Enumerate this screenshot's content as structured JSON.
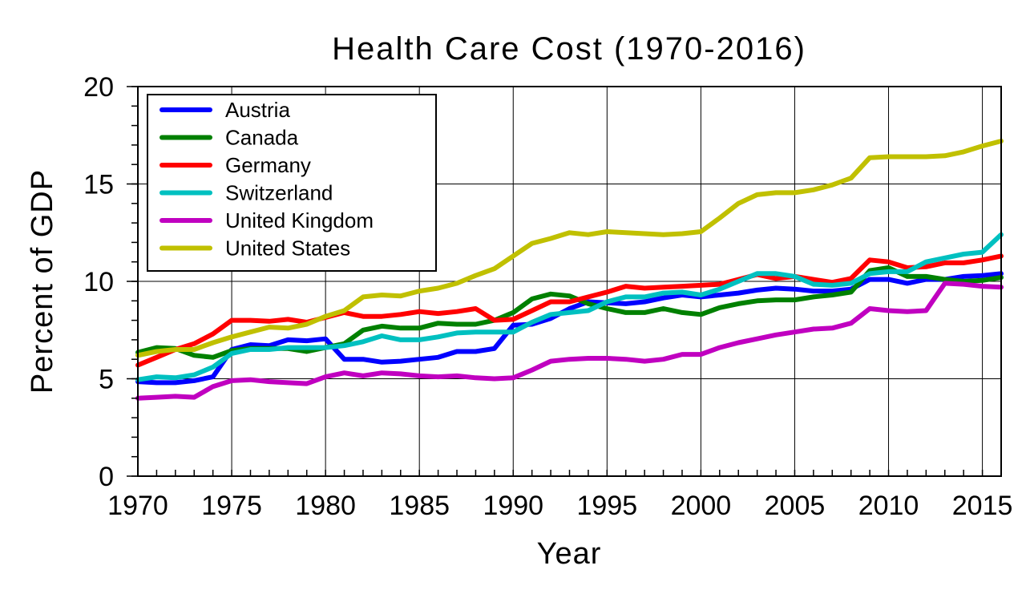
{
  "chart_data": {
    "type": "line",
    "title": "Health Care Cost (1970-2016)",
    "xlabel": "Year",
    "ylabel": "Percent of GDP",
    "xlim": [
      1970,
      2016
    ],
    "ylim": [
      0,
      20
    ],
    "x_ticks": [
      "1970",
      "1975",
      "1980",
      "1985",
      "1990",
      "1995",
      "2000",
      "2005",
      "2010",
      "2015"
    ],
    "y_ticks": [
      "0",
      "5",
      "10",
      "15",
      "20"
    ],
    "grid": true,
    "legend_position": "top-left",
    "x": [
      1970,
      1971,
      1972,
      1973,
      1974,
      1975,
      1976,
      1977,
      1978,
      1979,
      1980,
      1981,
      1982,
      1983,
      1984,
      1985,
      1986,
      1987,
      1988,
      1989,
      1990,
      1991,
      1992,
      1993,
      1994,
      1995,
      1996,
      1997,
      1998,
      1999,
      2000,
      2001,
      2002,
      2003,
      2004,
      2005,
      2006,
      2007,
      2008,
      2009,
      2010,
      2011,
      2012,
      2013,
      2014,
      2015,
      2016
    ],
    "series": [
      {
        "name": "Austria",
        "color": "#0000ff",
        "values": [
          4.85,
          4.8,
          4.8,
          4.9,
          5.1,
          6.5,
          6.75,
          6.7,
          7.0,
          6.95,
          7.05,
          6.0,
          6.0,
          5.85,
          5.9,
          6.0,
          6.1,
          6.4,
          6.4,
          6.55,
          7.75,
          7.8,
          8.1,
          8.6,
          8.95,
          8.9,
          8.85,
          8.95,
          9.15,
          9.3,
          9.2,
          9.3,
          9.4,
          9.55,
          9.65,
          9.6,
          9.5,
          9.5,
          9.6,
          10.1,
          10.1,
          9.9,
          10.1,
          10.1,
          10.25,
          10.3,
          10.4
        ]
      },
      {
        "name": "Canada",
        "color": "#008000",
        "values": [
          6.35,
          6.6,
          6.55,
          6.2,
          6.1,
          6.45,
          6.55,
          6.55,
          6.55,
          6.4,
          6.6,
          6.8,
          7.5,
          7.7,
          7.6,
          7.6,
          7.85,
          7.8,
          7.8,
          8.0,
          8.4,
          9.1,
          9.35,
          9.25,
          8.85,
          8.6,
          8.4,
          8.4,
          8.6,
          8.4,
          8.3,
          8.65,
          8.85,
          9.0,
          9.05,
          9.05,
          9.2,
          9.3,
          9.45,
          10.55,
          10.7,
          10.25,
          10.25,
          10.1,
          10.0,
          10.05,
          10.2
        ]
      },
      {
        "name": "Germany",
        "color": "#ff0000",
        "values": [
          5.7,
          6.1,
          6.5,
          6.8,
          7.3,
          8.0,
          8.0,
          7.95,
          8.05,
          7.9,
          8.15,
          8.4,
          8.2,
          8.2,
          8.3,
          8.45,
          8.35,
          8.45,
          8.6,
          8.0,
          8.05,
          8.5,
          8.95,
          8.95,
          9.2,
          9.45,
          9.75,
          9.65,
          9.7,
          9.75,
          9.8,
          9.85,
          10.1,
          10.35,
          10.15,
          10.25,
          10.1,
          9.95,
          10.15,
          11.1,
          11.0,
          10.7,
          10.75,
          10.95,
          10.95,
          11.1,
          11.3
        ]
      },
      {
        "name": "Switzerland",
        "color": "#00c0c0",
        "values": [
          4.95,
          5.1,
          5.05,
          5.2,
          5.6,
          6.3,
          6.5,
          6.5,
          6.6,
          6.6,
          6.6,
          6.7,
          6.9,
          7.2,
          7.0,
          7.0,
          7.15,
          7.35,
          7.4,
          7.4,
          7.4,
          7.9,
          8.3,
          8.4,
          8.5,
          8.95,
          9.2,
          9.2,
          9.4,
          9.45,
          9.3,
          9.6,
          10.0,
          10.4,
          10.4,
          10.25,
          9.85,
          9.8,
          9.9,
          10.4,
          10.5,
          10.5,
          11.0,
          11.2,
          11.4,
          11.5,
          12.4
        ]
      },
      {
        "name": "United Kingdom",
        "color": "#c000c0",
        "values": [
          4.0,
          4.05,
          4.1,
          4.05,
          4.6,
          4.9,
          4.95,
          4.85,
          4.8,
          4.75,
          5.1,
          5.3,
          5.15,
          5.3,
          5.25,
          5.15,
          5.1,
          5.15,
          5.05,
          5.0,
          5.05,
          5.45,
          5.9,
          6.0,
          6.05,
          6.05,
          6.0,
          5.9,
          6.0,
          6.25,
          6.25,
          6.6,
          6.85,
          7.05,
          7.25,
          7.4,
          7.55,
          7.6,
          7.85,
          8.6,
          8.5,
          8.45,
          8.5,
          9.9,
          9.85,
          9.75,
          9.7
        ]
      },
      {
        "name": "United States",
        "color": "#c0c000",
        "values": [
          6.2,
          6.4,
          6.5,
          6.5,
          6.85,
          7.15,
          7.4,
          7.65,
          7.6,
          7.8,
          8.2,
          8.5,
          9.2,
          9.3,
          9.25,
          9.5,
          9.65,
          9.9,
          10.3,
          10.65,
          11.3,
          11.95,
          12.2,
          12.5,
          12.4,
          12.55,
          12.5,
          12.45,
          12.4,
          12.45,
          12.55,
          13.25,
          14.0,
          14.45,
          14.55,
          14.55,
          14.7,
          14.95,
          15.3,
          16.35,
          16.4,
          16.4,
          16.4,
          16.45,
          16.65,
          16.95,
          17.2
        ]
      }
    ]
  }
}
